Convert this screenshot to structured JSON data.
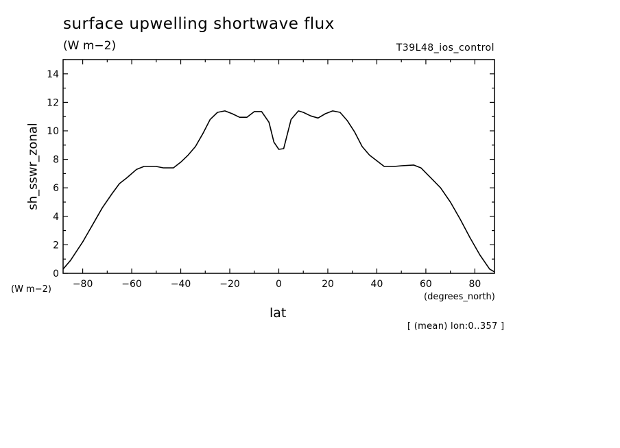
{
  "header": {
    "title": "surface upwelling shortwave flux",
    "units": "(W m−2)",
    "run_id": "T39L48_ios_control"
  },
  "axes": {
    "y_units": "(W m−2)",
    "x_units": "(degrees_north)"
  },
  "footer": {
    "note": "[ (mean) lon:0..357 ]"
  },
  "chart_data": {
    "type": "line",
    "xlabel": "lat",
    "ylabel": "sh_sswr_zonal",
    "xlim": [
      -88,
      88
    ],
    "ylim": [
      0,
      15
    ],
    "xticks": [
      -80,
      -60,
      -40,
      -20,
      0,
      20,
      40,
      60,
      80
    ],
    "yticks": [
      0,
      2,
      4,
      6,
      8,
      10,
      12,
      14
    ],
    "line_color": "#000000",
    "series": [
      {
        "x": [
          -88,
          -85,
          -80,
          -76,
          -72,
          -68,
          -65,
          -62,
          -58,
          -55,
          -50,
          -47,
          -43,
          -40,
          -37,
          -34,
          -31,
          -28,
          -25,
          -22,
          -19,
          -16,
          -13,
          -10,
          -7,
          -4,
          -2,
          0,
          2,
          5,
          8,
          10,
          13,
          16,
          19,
          22,
          25,
          28,
          31,
          34,
          37,
          40,
          43,
          47,
          50,
          55,
          58,
          62,
          66,
          70,
          74,
          78,
          82,
          86,
          88
        ],
        "y": [
          0.3,
          0.9,
          2.2,
          3.4,
          4.6,
          5.6,
          6.3,
          6.7,
          7.3,
          7.5,
          7.5,
          7.4,
          7.4,
          7.8,
          8.3,
          8.9,
          9.8,
          10.8,
          11.3,
          11.4,
          11.2,
          10.95,
          10.95,
          11.35,
          11.35,
          10.6,
          9.2,
          8.7,
          8.75,
          10.8,
          11.4,
          11.3,
          11.05,
          10.9,
          11.2,
          11.4,
          11.3,
          10.7,
          9.9,
          8.9,
          8.3,
          7.9,
          7.5,
          7.5,
          7.55,
          7.6,
          7.4,
          6.7,
          6.0,
          5.0,
          3.8,
          2.5,
          1.3,
          0.3,
          0.1
        ]
      }
    ]
  }
}
